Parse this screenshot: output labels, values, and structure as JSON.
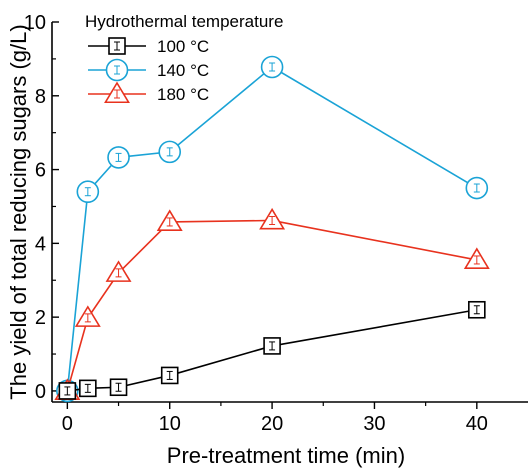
{
  "chart_data": {
    "type": "line",
    "xlabel": "Pre-treatment time (min)",
    "ylabel": "The yield of total reducing sugars (g/L)",
    "xlim": [
      -1.5,
      45
    ],
    "ylim": [
      -0.3,
      10
    ],
    "x_ticks": [
      0,
      10,
      20,
      30,
      40
    ],
    "y_ticks": [
      0,
      2,
      4,
      6,
      8,
      10
    ],
    "legend_title": "Hydrothermal temperature",
    "legend_position": "top-left",
    "grid": false,
    "series": [
      {
        "name": "100 °C",
        "marker": "square",
        "color": "#000000",
        "x": [
          0,
          2,
          5,
          10,
          20,
          40
        ],
        "y": [
          0.0,
          0.07,
          0.1,
          0.42,
          1.22,
          2.2
        ]
      },
      {
        "name": "140 °C",
        "marker": "circle",
        "color": "#1aa3d6",
        "x": [
          0,
          2,
          5,
          10,
          20,
          40
        ],
        "y": [
          0.0,
          5.4,
          6.33,
          6.48,
          8.78,
          5.5
        ]
      },
      {
        "name": "180 °C",
        "marker": "triangle",
        "color": "#e8321e",
        "x": [
          0,
          2,
          5,
          10,
          20,
          40
        ],
        "y": [
          0.0,
          1.98,
          3.2,
          4.58,
          4.62,
          3.55
        ]
      }
    ]
  }
}
